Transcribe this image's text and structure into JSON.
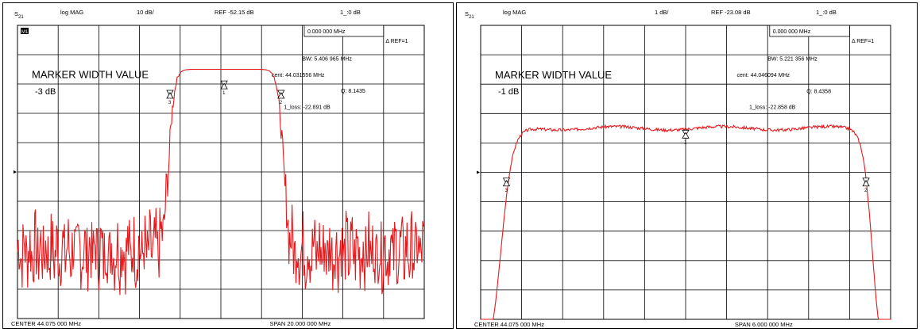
{
  "chart_data": [
    {
      "type": "line",
      "param": "S",
      "param_sub": "21",
      "format": "log MAG",
      "scale": "10 dB/",
      "reference": "REF -52.15 dB",
      "readout": "1_:0     dB",
      "corner_box": "M1",
      "marker_freq": "0.000 000 MHz",
      "ref_marker": "REF=1",
      "bw": "BW:   5.406 965 MHz",
      "cent": "cent:  44.031556 MHz",
      "q": "Q: 8.1435",
      "loss": "1_loss: -22.891 dB",
      "title_line1": "MARKER WIDTH VALUE",
      "title_line2": "-3 dB",
      "center": "CENTER    44.075 000 MHz",
      "span": "SPAN    20.000 000 MHz",
      "ref_div": 2,
      "y_per_div": 10,
      "x_divs": 10,
      "y_divs": 10,
      "color": "#e8191c",
      "curve": {
        "kind": "wide",
        "edge_left": 3.72,
        "edge_right": 6.53,
        "pass_level": -21.0,
        "floor_level": -83.0,
        "noise": 12,
        "seed": 7
      },
      "markers": [
        {
          "label": "3",
          "x": 3.75,
          "div": 2.27
        },
        {
          "label": "1",
          "x": 5.08,
          "div": 1.95,
          "triangle": "up"
        },
        {
          "label": "2",
          "x": 6.48,
          "div": 2.27
        }
      ]
    },
    {
      "type": "line",
      "param": "S",
      "param_sub": "21",
      "format": "log MAG",
      "scale": "1 dB/",
      "reference": "REF -23.08 dB",
      "readout": "1_:0     dB",
      "corner_box": "",
      "marker_freq": "0.000 000 MHz",
      "ref_marker": "REF=1",
      "bw": "BW:   5.221 356 MHz",
      "cent": "cent:  44.046094 MHz",
      "q": "Q: 8.4358",
      "loss": "1_loss: -22.858 dB",
      "title_line1": "MARKER WIDTH VALUE",
      "title_line2": "-1 dB",
      "center": "CENTER    44.075 000 MHz",
      "span": "SPAN    6.000 000 MHz",
      "ref_div": 2,
      "y_per_div": 1,
      "x_divs": 10,
      "y_divs": 10,
      "color": "#e8191c",
      "curve": {
        "kind": "narrow",
        "edge_left": 0.5,
        "edge_right": 9.55,
        "pass_level": -22.8,
        "floor_level": -31.0,
        "noise": 0.05,
        "seed": 3
      },
      "markers": [
        {
          "label": "3",
          "x": 0.63,
          "div": 5.25
        },
        {
          "label": "1",
          "x": 5.0,
          "div": 3.62,
          "triangle": "up"
        },
        {
          "label": "2",
          "x": 9.4,
          "div": 5.25
        }
      ]
    }
  ]
}
